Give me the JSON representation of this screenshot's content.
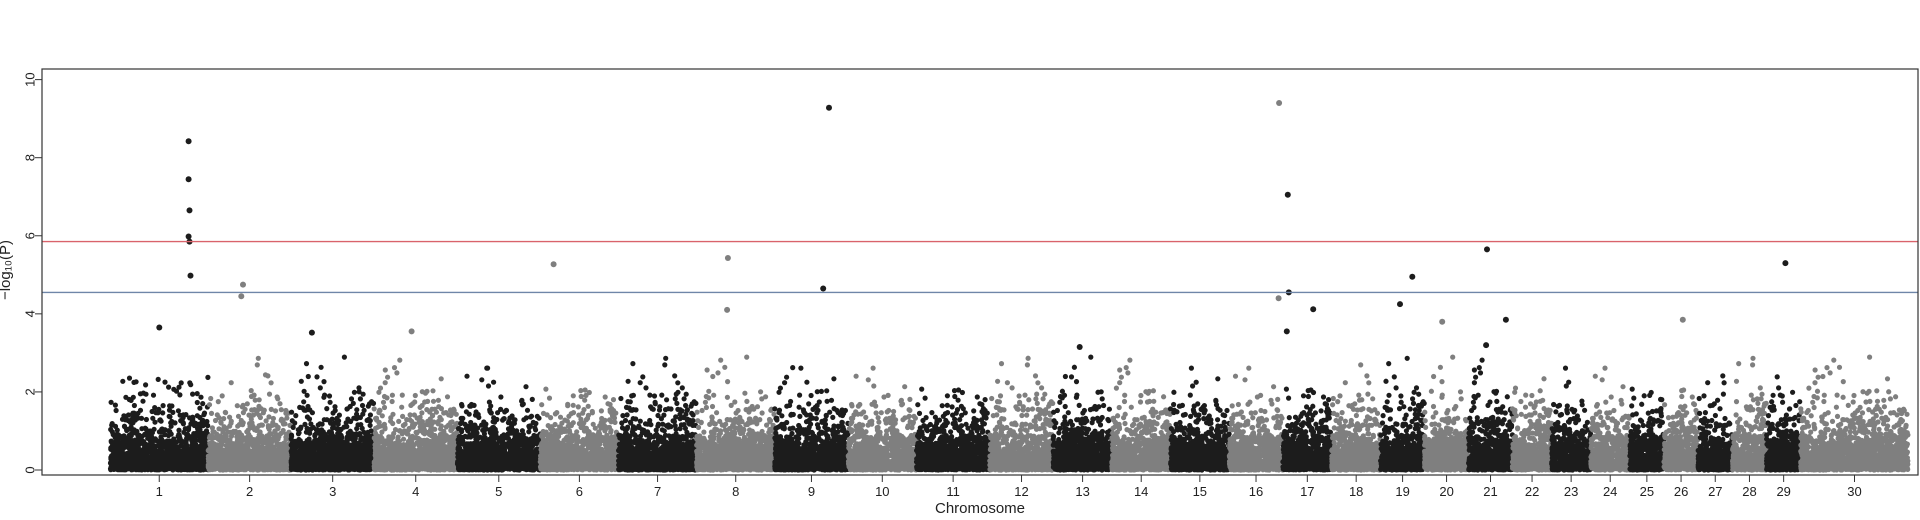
{
  "chart_data": {
    "type": "scatter",
    "subtype": "manhattan",
    "title": "",
    "xlabel": "Chromosome",
    "ylabel": "−log₁₀(P)",
    "ylim": [
      0,
      10.4
    ],
    "yticks": [
      0,
      2,
      4,
      6,
      8,
      10
    ],
    "grid": false,
    "legend": "none",
    "colors": {
      "odd": "#1c1c1c",
      "even": "#7f7f7f"
    },
    "thresholds": [
      {
        "value": 5.85,
        "color": "#d9636b"
      },
      {
        "value": 4.55,
        "color": "#6f86a8"
      }
    ],
    "chromosomes": [
      {
        "label": "1",
        "start": 0,
        "end": 100
      },
      {
        "label": "2",
        "start": 100,
        "end": 185
      },
      {
        "label": "3",
        "start": 185,
        "end": 270
      },
      {
        "label": "4",
        "start": 270,
        "end": 355
      },
      {
        "label": "5",
        "start": 355,
        "end": 440
      },
      {
        "label": "6",
        "start": 440,
        "end": 520
      },
      {
        "label": "7",
        "start": 520,
        "end": 600
      },
      {
        "label": "8",
        "start": 600,
        "end": 680
      },
      {
        "label": "9",
        "start": 680,
        "end": 755
      },
      {
        "label": "10",
        "start": 755,
        "end": 825
      },
      {
        "label": "11",
        "start": 825,
        "end": 900
      },
      {
        "label": "12",
        "start": 900,
        "end": 965
      },
      {
        "label": "13",
        "start": 965,
        "end": 1025
      },
      {
        "label": "14",
        "start": 1025,
        "end": 1085
      },
      {
        "label": "15",
        "start": 1085,
        "end": 1145
      },
      {
        "label": "16",
        "start": 1145,
        "end": 1200
      },
      {
        "label": "17",
        "start": 1200,
        "end": 1250
      },
      {
        "label": "18",
        "start": 1250,
        "end": 1300
      },
      {
        "label": "19",
        "start": 1300,
        "end": 1345
      },
      {
        "label": "20",
        "start": 1345,
        "end": 1390
      },
      {
        "label": "21",
        "start": 1390,
        "end": 1435
      },
      {
        "label": "22",
        "start": 1435,
        "end": 1475
      },
      {
        "label": "23",
        "start": 1475,
        "end": 1515
      },
      {
        "label": "24",
        "start": 1515,
        "end": 1555
      },
      {
        "label": "25",
        "start": 1555,
        "end": 1590
      },
      {
        "label": "26",
        "start": 1590,
        "end": 1625
      },
      {
        "label": "27",
        "start": 1625,
        "end": 1660
      },
      {
        "label": "28",
        "start": 1660,
        "end": 1695
      },
      {
        "label": "29",
        "start": 1695,
        "end": 1730
      },
      {
        "label": "30",
        "start": 1730,
        "end": 1840
      }
    ],
    "xlim": [
      -70,
      1850
    ],
    "notable_points": [
      {
        "chr": "1",
        "pos": 0.5,
        "y": 3.65
      },
      {
        "chr": "1",
        "pos": 0.8,
        "y": 8.42
      },
      {
        "chr": "1",
        "pos": 0.8,
        "y": 7.45
      },
      {
        "chr": "1",
        "pos": 0.81,
        "y": 6.65
      },
      {
        "chr": "1",
        "pos": 0.8,
        "y": 5.98
      },
      {
        "chr": "1",
        "pos": 0.81,
        "y": 5.85
      },
      {
        "chr": "1",
        "pos": 0.82,
        "y": 4.98
      },
      {
        "chr": "2",
        "pos": 0.42,
        "y": 4.75
      },
      {
        "chr": "2",
        "pos": 0.4,
        "y": 4.45
      },
      {
        "chr": "3",
        "pos": 0.25,
        "y": 3.52
      },
      {
        "chr": "4",
        "pos": 0.45,
        "y": 3.55
      },
      {
        "chr": "6",
        "pos": 0.17,
        "y": 5.27
      },
      {
        "chr": "8",
        "pos": 0.4,
        "y": 5.43
      },
      {
        "chr": "8",
        "pos": 0.39,
        "y": 4.1
      },
      {
        "chr": "9",
        "pos": 0.66,
        "y": 4.65
      },
      {
        "chr": "9",
        "pos": 0.74,
        "y": 9.28
      },
      {
        "chr": "13",
        "pos": 0.45,
        "y": 3.15
      },
      {
        "chr": "16",
        "pos": 0.93,
        "y": 9.4
      },
      {
        "chr": "16",
        "pos": 0.92,
        "y": 4.4
      },
      {
        "chr": "17",
        "pos": 0.1,
        "y": 7.05
      },
      {
        "chr": "17",
        "pos": 0.12,
        "y": 4.55
      },
      {
        "chr": "17",
        "pos": 0.08,
        "y": 3.55
      },
      {
        "chr": "17",
        "pos": 0.62,
        "y": 4.12
      },
      {
        "chr": "19",
        "pos": 0.44,
        "y": 4.25
      },
      {
        "chr": "19",
        "pos": 0.72,
        "y": 4.95
      },
      {
        "chr": "20",
        "pos": 0.4,
        "y": 3.8
      },
      {
        "chr": "21",
        "pos": 0.42,
        "y": 5.65
      },
      {
        "chr": "21",
        "pos": 0.4,
        "y": 3.2
      },
      {
        "chr": "21",
        "pos": 0.85,
        "y": 3.85
      },
      {
        "chr": "26",
        "pos": 0.55,
        "y": 3.85
      },
      {
        "chr": "29",
        "pos": 0.55,
        "y": 5.3
      }
    ]
  }
}
